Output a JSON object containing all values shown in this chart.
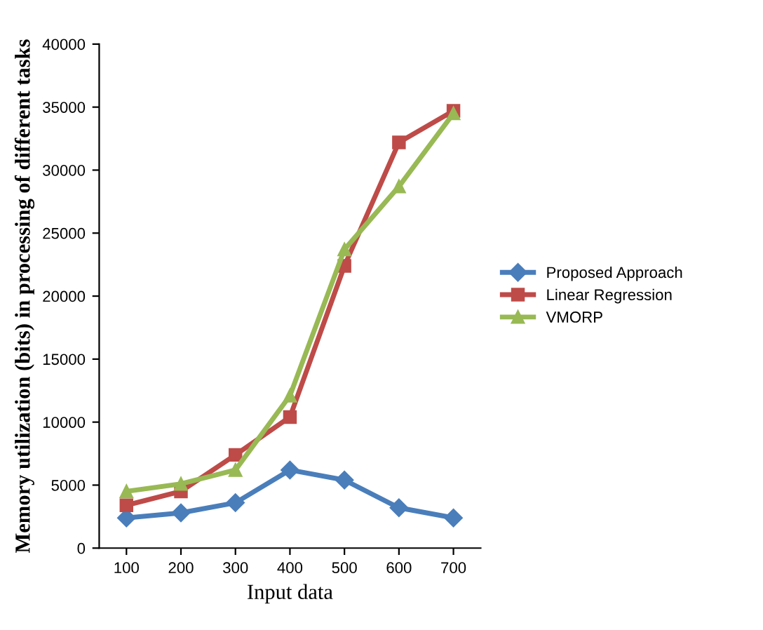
{
  "chart_data": {
    "type": "line",
    "xlabel": "Input data",
    "ylabel": "Memory utilization (bits) in processing of different tasks",
    "categories": [
      "100",
      "200",
      "300",
      "400",
      "500",
      "600",
      "700"
    ],
    "ylim": [
      0,
      40000
    ],
    "yticks": [
      0,
      5000,
      10000,
      15000,
      20000,
      25000,
      30000,
      35000,
      40000
    ],
    "grid": false,
    "legend": "right",
    "line_style": "solid",
    "series": [
      {
        "name": "Proposed Approach",
        "color": "#4a7ebb",
        "marker": "diamond",
        "values": [
          2400,
          2800,
          3600,
          6200,
          5400,
          3200,
          2400
        ]
      },
      {
        "name": "Linear Regression",
        "color": "#be4b48",
        "marker": "square",
        "values": [
          3400,
          4500,
          7400,
          10400,
          22400,
          32200,
          34700
        ]
      },
      {
        "name": "VMORP",
        "color": "#98b954",
        "marker": "triangle",
        "values": [
          4500,
          5100,
          6200,
          12100,
          23700,
          28700,
          34500
        ]
      }
    ]
  }
}
